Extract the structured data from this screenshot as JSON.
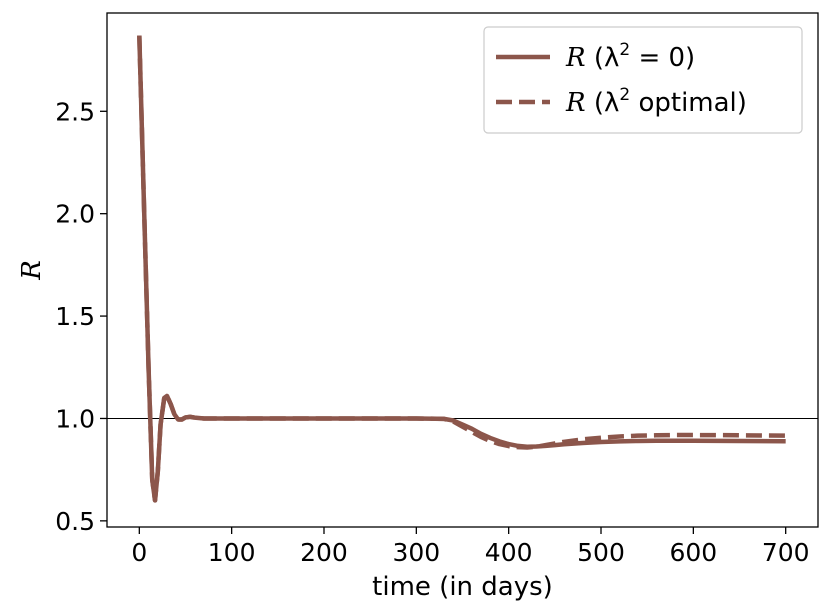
{
  "chart_data": {
    "type": "line",
    "title": "",
    "xlabel": "time (in days)",
    "ylabel_symbol": "R",
    "xlim": [
      -35,
      735
    ],
    "ylim": [
      0.47,
      2.98
    ],
    "xticks": [
      0,
      100,
      200,
      300,
      400,
      500,
      600,
      700
    ],
    "xtick_labels": [
      "0",
      "100",
      "200",
      "300",
      "400",
      "500",
      "600",
      "700"
    ],
    "yticks": [
      0.5,
      1.0,
      1.5,
      2.0,
      2.5
    ],
    "ytick_labels": [
      "0.5",
      "1.0",
      "1.5",
      "2.0",
      "2.5"
    ],
    "reference_line_y": 1.0,
    "grid": false,
    "legend_position": "top-right",
    "series": [
      {
        "name": "(λ² = 0)",
        "legend_symbol": "R",
        "legend_text": "(λ",
        "legend_sup": "2",
        "legend_tail": " = 0)",
        "style": "solid",
        "color": "#8c564b",
        "x": [
          0,
          5,
          10,
          14,
          17,
          20,
          23,
          27,
          30,
          34,
          38,
          42,
          46,
          50,
          55,
          60,
          70,
          100,
          200,
          300,
          330,
          340,
          350,
          360,
          370,
          380,
          390,
          400,
          410,
          420,
          430,
          440,
          450,
          460,
          480,
          500,
          520,
          540,
          560,
          580,
          600,
          650,
          700
        ],
        "y": [
          2.87,
          2.05,
          1.25,
          0.7,
          0.6,
          0.74,
          0.97,
          1.1,
          1.11,
          1.07,
          1.02,
          0.995,
          0.995,
          1.005,
          1.008,
          1.004,
          1.0,
          1.0,
          1.0,
          1.0,
          0.998,
          0.99,
          0.97,
          0.95,
          0.925,
          0.905,
          0.888,
          0.875,
          0.866,
          0.862,
          0.863,
          0.866,
          0.87,
          0.874,
          0.88,
          0.885,
          0.888,
          0.89,
          0.891,
          0.891,
          0.891,
          0.89,
          0.889
        ]
      },
      {
        "name": "(λ² optimal)",
        "legend_symbol": "R",
        "legend_text": "(λ",
        "legend_sup": "2",
        "legend_tail": " optimal)",
        "style": "dashed",
        "color": "#8c564b",
        "x": [
          0,
          5,
          10,
          14,
          17,
          20,
          23,
          27,
          30,
          34,
          38,
          42,
          46,
          50,
          55,
          60,
          70,
          100,
          200,
          300,
          330,
          340,
          350,
          360,
          370,
          380,
          390,
          400,
          410,
          420,
          430,
          440,
          450,
          460,
          480,
          500,
          520,
          540,
          560,
          580,
          600,
          650,
          700
        ],
        "y": [
          2.87,
          2.05,
          1.25,
          0.7,
          0.6,
          0.74,
          0.97,
          1.1,
          1.11,
          1.07,
          1.02,
          0.995,
          0.995,
          1.005,
          1.008,
          1.004,
          1.0,
          1.0,
          1.0,
          1.0,
          0.998,
          0.985,
          0.96,
          0.935,
          0.91,
          0.89,
          0.875,
          0.865,
          0.86,
          0.858,
          0.862,
          0.87,
          0.878,
          0.886,
          0.898,
          0.906,
          0.912,
          0.916,
          0.918,
          0.919,
          0.919,
          0.918,
          0.916
        ]
      }
    ]
  }
}
